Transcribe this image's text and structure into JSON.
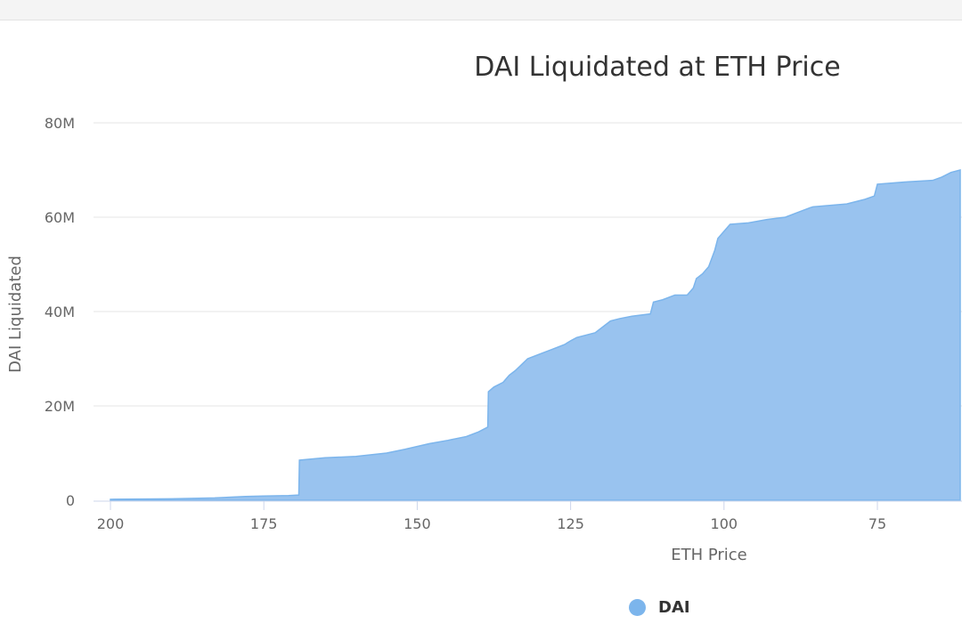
{
  "colors": {
    "series_fill": "#99c3ef",
    "series_line": "#7cb5ec",
    "grid": "#e6e6e6",
    "axis_line": "#ccd6eb"
  },
  "chart_data": {
    "type": "area",
    "title": "DAI Liquidated at ETH Price",
    "xlabel": "ETH Price",
    "ylabel": "DAI Liquidated",
    "x_reversed": true,
    "xlim": [
      200,
      61.5
    ],
    "ylim": [
      0,
      80000000
    ],
    "x_ticks": [
      200,
      175,
      150,
      125,
      100,
      75
    ],
    "x_tick_labels": [
      "200",
      "175",
      "150",
      "125",
      "100",
      "75"
    ],
    "y_ticks": [
      0,
      20000000,
      40000000,
      60000000,
      80000000
    ],
    "y_tick_labels": [
      "0",
      "20M",
      "40M",
      "60M",
      "80M"
    ],
    "grid": true,
    "legend_position": "bottom-center",
    "series": [
      {
        "name": "DAI",
        "x": [
          200,
          190,
          183,
          178,
          175,
          171,
          169.3,
          169.2,
          165,
          160,
          155,
          152,
          148,
          145,
          142,
          140,
          138.5,
          138.4,
          137.5,
          136,
          135,
          134,
          132,
          130,
          128,
          126,
          125,
          124,
          121,
          118.5,
          117,
          115,
          112,
          111.5,
          110,
          108,
          106,
          105,
          104.5,
          103.5,
          102.5,
          101.5,
          101,
          100,
          99,
          96,
          93,
          90,
          88,
          86,
          85.5,
          80,
          77,
          75.5,
          75,
          70,
          66,
          64.5,
          63,
          61.5
        ],
        "values": [
          200000,
          300000,
          500000,
          800000,
          900000,
          1000000,
          1100000,
          8500000,
          9000000,
          9300000,
          10000000,
          10800000,
          12000000,
          12700000,
          13500000,
          14500000,
          15500000,
          23000000,
          24000000,
          25000000,
          26500000,
          27500000,
          30000000,
          31000000,
          32000000,
          33000000,
          33800000,
          34500000,
          35500000,
          38000000,
          38500000,
          39000000,
          39500000,
          42000000,
          42500000,
          43500000,
          43500000,
          45000000,
          47000000,
          48000000,
          49500000,
          53000000,
          55500000,
          57000000,
          58500000,
          58800000,
          59500000,
          60000000,
          61000000,
          62000000,
          62200000,
          62800000,
          63800000,
          64500000,
          67000000,
          67500000,
          67800000,
          68500000,
          69500000,
          70000000
        ]
      }
    ]
  }
}
